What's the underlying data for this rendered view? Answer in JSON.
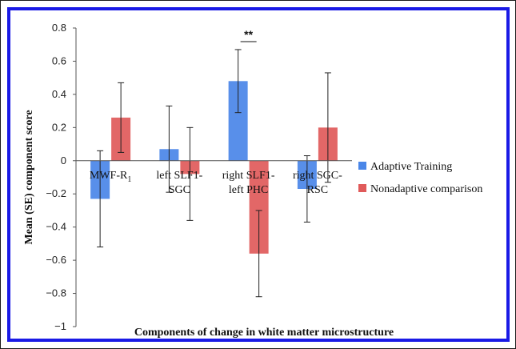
{
  "chart_data": {
    "type": "bar",
    "title": "",
    "xlabel": "Components of change in white matter microstructure",
    "ylabel": "Mean (SE) component score",
    "ylim": [
      -1,
      0.8
    ],
    "y_ticks": [
      "0.8",
      "0.6",
      "0.4",
      "0.2",
      "0",
      "−0.2",
      "−0.4",
      "−0.6",
      "−0.8",
      "−1"
    ],
    "y_tick_values": [
      0.8,
      0.6,
      0.4,
      0.2,
      0,
      -0.2,
      -0.4,
      -0.6,
      -0.8,
      -1
    ],
    "categories": [
      [
        "MWF-R",
        ""
      ],
      [
        "left SLF1-",
        "SGC"
      ],
      [
        "right SLF1-",
        "left PHC"
      ],
      [
        "right SGC-",
        "RSC"
      ]
    ],
    "category_subscripts": [
      "1",
      "",
      "",
      ""
    ],
    "series": [
      {
        "name": "Adaptive Training",
        "color": "#4a86e8",
        "values": [
          -0.23,
          0.07,
          0.48,
          -0.17
        ],
        "error": [
          0.29,
          0.26,
          0.19,
          0.2
        ]
      },
      {
        "name": "Nonadaptive comparison",
        "color": "#e05a5a",
        "values": [
          0.26,
          -0.08,
          -0.56,
          0.2
        ],
        "error": [
          0.21,
          0.28,
          0.26,
          0.33
        ]
      }
    ],
    "annotations": [
      {
        "text": "**",
        "category_index": 2
      }
    ],
    "legend_position": "right",
    "grid": false
  }
}
